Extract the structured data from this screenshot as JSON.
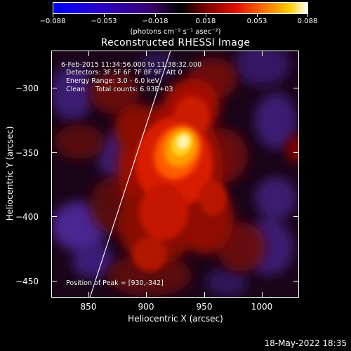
{
  "colorbar": {
    "ticks": [
      "−0.088",
      "−0.053",
      "−0.018",
      "0.018",
      "0.053",
      "0.088"
    ],
    "units": "(photons cm⁻² s⁻¹ asec⁻²)"
  },
  "title": "Reconstructed RHESSI Image",
  "info": {
    "time": "6-Feb-2015 11:34:56.000 to 11:38:32.000",
    "detectors": "Detectors: 3F 5F 6F 7F 8F 9F, Att 0",
    "energy": "Energy Range: 3.0 - 6.0 keV",
    "clean": "Clean     Total counts: 6.93E+03",
    "peak": "Position of Peak = [930,-342]"
  },
  "axes": {
    "xlabel": "Heliocentric X (arcsec)",
    "ylabel": "Heliocentric Y (arcsec)",
    "xticks": [
      "850",
      "900",
      "950",
      "1000"
    ],
    "yticks": [
      "−300",
      "−350",
      "−400",
      "−450"
    ]
  },
  "footer": "18-May-2022 18:35"
}
